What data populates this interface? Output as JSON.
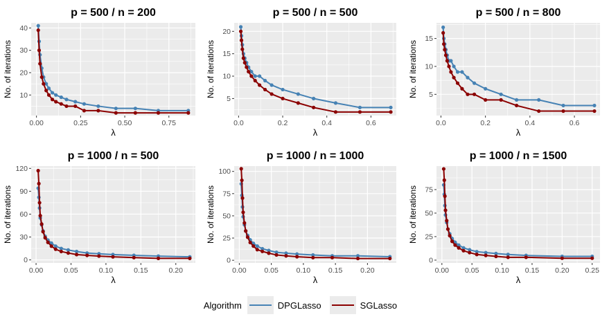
{
  "colors": {
    "DPGLasso": "#4682B4",
    "SGLasso": "#8B0000",
    "panel_bg": "#EBEBEB",
    "grid": "#FFFFFF"
  },
  "legend": {
    "title": "Algorithm",
    "items": [
      "DPGLasso",
      "SGLasso"
    ],
    "placement": "bottom"
  },
  "chart_data": [
    {
      "type": "line",
      "title": "p =  500 / n =  200",
      "xlabel": "λ",
      "ylabel": "No. of iterations",
      "xlim": [
        -0.03,
        0.9
      ],
      "ylim": [
        0.8,
        42.3
      ],
      "xticks": [
        0,
        0.25,
        0.5,
        0.75
      ],
      "xtick_labels": [
        "0.00",
        "0.25",
        "0.50",
        "0.75"
      ],
      "yticks": [
        10,
        20,
        30,
        40
      ],
      "ytick_labels": [
        "10",
        "20",
        "30",
        "40"
      ],
      "grid": true,
      "series": [
        {
          "name": "DPGLasso",
          "x": [
            0.01,
            0.015,
            0.02,
            0.03,
            0.04,
            0.055,
            0.07,
            0.09,
            0.11,
            0.14,
            0.17,
            0.22,
            0.27,
            0.35,
            0.45,
            0.56,
            0.69,
            0.86
          ],
          "y": [
            41,
            34,
            28,
            22,
            18,
            15,
            13,
            11,
            10,
            9,
            8,
            7,
            6,
            5,
            4,
            4,
            3,
            3
          ]
        },
        {
          "name": "SGLasso",
          "x": [
            0.01,
            0.015,
            0.02,
            0.03,
            0.04,
            0.055,
            0.07,
            0.09,
            0.11,
            0.14,
            0.17,
            0.22,
            0.27,
            0.35,
            0.45,
            0.56,
            0.69,
            0.86
          ],
          "y": [
            39,
            30,
            24,
            18,
            15,
            12,
            10,
            8,
            7,
            6,
            5,
            5,
            3,
            3,
            2,
            2,
            2,
            2
          ]
        }
      ]
    },
    {
      "type": "line",
      "title": "p =  500 / n =  500",
      "xlabel": "λ",
      "ylabel": "No. of iterations",
      "xlim": [
        -0.02,
        0.715
      ],
      "ylim": [
        1.2,
        21.9
      ],
      "xticks": [
        0,
        0.2,
        0.4,
        0.6
      ],
      "xtick_labels": [
        "0.0",
        "0.2",
        "0.4",
        "0.6"
      ],
      "yticks": [
        5,
        10,
        15,
        20
      ],
      "ytick_labels": [
        "5",
        "10",
        "15",
        "20"
      ],
      "grid": true,
      "series": [
        {
          "name": "DPGLasso",
          "x": [
            0.01,
            0.013,
            0.017,
            0.022,
            0.028,
            0.036,
            0.045,
            0.058,
            0.075,
            0.095,
            0.12,
            0.15,
            0.2,
            0.27,
            0.34,
            0.44,
            0.55,
            0.69
          ],
          "y": [
            21,
            19,
            17,
            15,
            14,
            13,
            12,
            11,
            10,
            10,
            9,
            8,
            7,
            6,
            5,
            4,
            3,
            3
          ]
        },
        {
          "name": "SGLasso",
          "x": [
            0.01,
            0.013,
            0.017,
            0.022,
            0.028,
            0.036,
            0.045,
            0.058,
            0.075,
            0.095,
            0.12,
            0.15,
            0.2,
            0.27,
            0.34,
            0.44,
            0.55,
            0.69
          ],
          "y": [
            20,
            18,
            16,
            14,
            13,
            12,
            11,
            10,
            9,
            8,
            7,
            6,
            5,
            4,
            3,
            2,
            2,
            2
          ]
        }
      ]
    },
    {
      "type": "line",
      "title": "p =  500 / n =  800",
      "xlabel": "λ",
      "ylabel": "No. of iterations",
      "xlim": [
        -0.02,
        0.715
      ],
      "ylim": [
        1.2,
        17.8
      ],
      "xticks": [
        0,
        0.2,
        0.4,
        0.6
      ],
      "xtick_labels": [
        "0.0",
        "0.2",
        "0.4",
        "0.6"
      ],
      "yticks": [
        5,
        10,
        15
      ],
      "ytick_labels": [
        "5",
        "10",
        "15"
      ],
      "grid": true,
      "series": [
        {
          "name": "DPGLasso",
          "x": [
            0.01,
            0.013,
            0.017,
            0.022,
            0.028,
            0.036,
            0.045,
            0.058,
            0.075,
            0.095,
            0.12,
            0.15,
            0.2,
            0.27,
            0.34,
            0.44,
            0.55,
            0.69
          ],
          "y": [
            17,
            15,
            14,
            13,
            12,
            11,
            11,
            10,
            9,
            9,
            8,
            7,
            6,
            5,
            4,
            4,
            3,
            3
          ]
        },
        {
          "name": "SGLasso",
          "x": [
            0.01,
            0.013,
            0.017,
            0.022,
            0.028,
            0.036,
            0.045,
            0.058,
            0.075,
            0.095,
            0.12,
            0.15,
            0.2,
            0.27,
            0.34,
            0.44,
            0.55,
            0.69
          ],
          "y": [
            16,
            14,
            13,
            12,
            11,
            10,
            9,
            8,
            7,
            6,
            5,
            5,
            4,
            4,
            3,
            2,
            2,
            2
          ]
        }
      ]
    },
    {
      "type": "line",
      "title": "p =  1000 / n =  500",
      "xlabel": "λ",
      "ylabel": "No. of iterations",
      "xlim": [
        -0.007,
        0.228
      ],
      "ylim": [
        -4,
        123
      ],
      "xticks": [
        0,
        0.05,
        0.1,
        0.15,
        0.2
      ],
      "xtick_labels": [
        "0.00",
        "0.05",
        "0.10",
        "0.15",
        "0.20"
      ],
      "yticks": [
        0,
        30,
        60,
        90,
        120
      ],
      "ytick_labels": [
        "0",
        "30",
        "60",
        "90",
        "120"
      ],
      "grid": true,
      "series": [
        {
          "name": "DPGLasso",
          "x": [
            0.003,
            0.004,
            0.005,
            0.006,
            0.008,
            0.01,
            0.013,
            0.017,
            0.022,
            0.028,
            0.036,
            0.046,
            0.058,
            0.073,
            0.09,
            0.11,
            0.14,
            0.175,
            0.22
          ],
          "y": [
            94,
            82,
            68,
            55,
            46,
            38,
            31,
            26,
            22,
            18,
            15,
            13,
            11,
            9,
            8,
            7,
            6,
            5,
            4
          ]
        },
        {
          "name": "SGLasso",
          "x": [
            0.003,
            0.004,
            0.005,
            0.006,
            0.008,
            0.01,
            0.013,
            0.017,
            0.022,
            0.028,
            0.036,
            0.046,
            0.058,
            0.073,
            0.09,
            0.11,
            0.14,
            0.175,
            0.22
          ],
          "y": [
            117,
            100,
            75,
            58,
            47,
            37,
            29,
            23,
            18,
            14,
            11,
            9,
            7,
            6,
            5,
            4,
            3,
            2,
            2
          ]
        }
      ]
    },
    {
      "type": "line",
      "title": "p =  1000 / n =  1000",
      "xlabel": "λ",
      "ylabel": "No. of iterations",
      "xlim": [
        -0.008,
        0.245
      ],
      "ylim": [
        -3,
        106
      ],
      "xticks": [
        0,
        0.05,
        0.1,
        0.15,
        0.2
      ],
      "xtick_labels": [
        "0.00",
        "0.05",
        "0.10",
        "0.15",
        "0.20"
      ],
      "yticks": [
        0,
        25,
        50,
        75,
        100
      ],
      "ytick_labels": [
        "0",
        "25",
        "50",
        "75",
        "100"
      ],
      "grid": true,
      "series": [
        {
          "name": "DPGLasso",
          "x": [
            0.003,
            0.004,
            0.005,
            0.006,
            0.008,
            0.01,
            0.013,
            0.017,
            0.022,
            0.028,
            0.036,
            0.046,
            0.058,
            0.073,
            0.09,
            0.115,
            0.145,
            0.185,
            0.235
          ],
          "y": [
            86,
            73,
            60,
            49,
            40,
            33,
            28,
            23,
            19,
            16,
            13,
            11,
            9,
            8,
            7,
            6,
            5,
            5,
            4
          ]
        },
        {
          "name": "SGLasso",
          "x": [
            0.003,
            0.004,
            0.005,
            0.006,
            0.008,
            0.01,
            0.013,
            0.017,
            0.022,
            0.028,
            0.036,
            0.046,
            0.058,
            0.073,
            0.09,
            0.115,
            0.145,
            0.185,
            0.235
          ],
          "y": [
            103,
            90,
            70,
            54,
            42,
            33,
            26,
            20,
            16,
            12,
            10,
            8,
            6,
            5,
            4,
            3,
            3,
            2,
            2
          ]
        }
      ]
    },
    {
      "type": "line",
      "title": "p =  1000 / n =  1500",
      "xlabel": "λ",
      "ylabel": "No. of iterations",
      "xlim": [
        -0.009,
        0.263
      ],
      "ylim": [
        -3,
        100
      ],
      "xticks": [
        0,
        0.05,
        0.1,
        0.15,
        0.2,
        0.25
      ],
      "xtick_labels": [
        "0.00",
        "0.05",
        "0.10",
        "0.15",
        "0.20",
        "0.25"
      ],
      "yticks": [
        0,
        25,
        50,
        75
      ],
      "ytick_labels": [
        "0",
        "25",
        "50",
        "75"
      ],
      "grid": true,
      "series": [
        {
          "name": "DPGLasso",
          "x": [
            0.003,
            0.004,
            0.005,
            0.006,
            0.008,
            0.01,
            0.013,
            0.017,
            0.022,
            0.028,
            0.036,
            0.046,
            0.058,
            0.073,
            0.09,
            0.11,
            0.14,
            0.2,
            0.25
          ],
          "y": [
            80,
            70,
            58,
            48,
            40,
            33,
            28,
            23,
            19,
            16,
            13,
            11,
            9,
            8,
            7,
            6,
            5,
            4,
            4
          ]
        },
        {
          "name": "SGLasso",
          "x": [
            0.003,
            0.004,
            0.005,
            0.006,
            0.008,
            0.01,
            0.013,
            0.017,
            0.022,
            0.028,
            0.036,
            0.046,
            0.058,
            0.073,
            0.09,
            0.11,
            0.14,
            0.2,
            0.25
          ],
          "y": [
            97,
            85,
            68,
            53,
            42,
            33,
            26,
            20,
            16,
            13,
            10,
            8,
            6,
            5,
            4,
            3,
            3,
            2,
            2
          ]
        }
      ]
    }
  ]
}
